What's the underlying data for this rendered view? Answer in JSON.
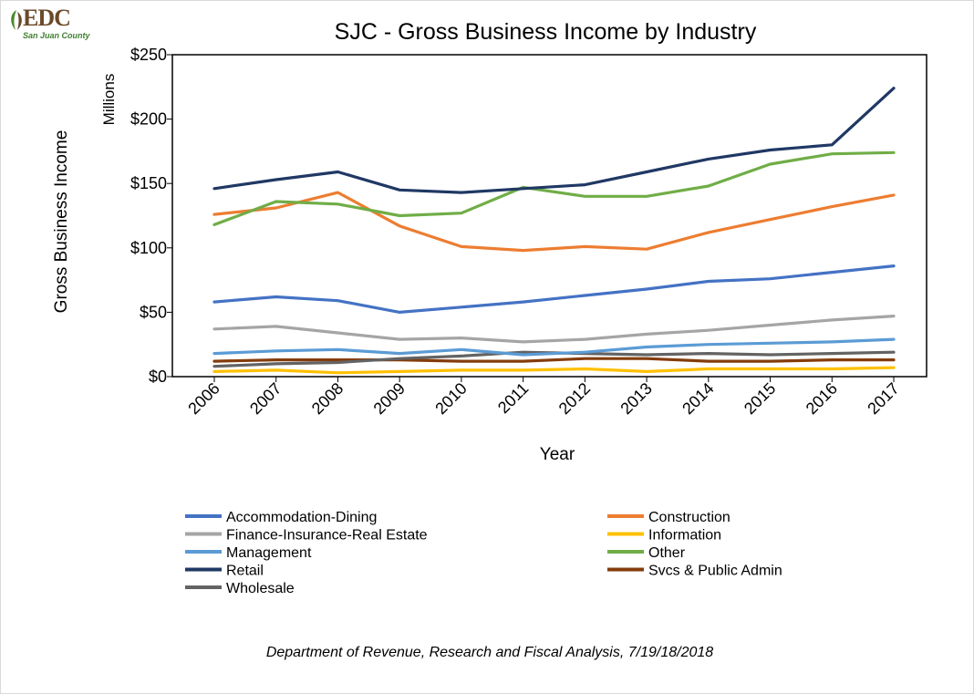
{
  "logo": {
    "name": "EDC",
    "subtitle": "San Juan County"
  },
  "source_note": "Department of Revenue, Research and Fiscal Analysis, 7/19/18/2018",
  "chart_data": {
    "type": "line",
    "title": "SJC - Gross Business Income by Industry",
    "xlabel": "Year",
    "ylabel": "Gross Business Income",
    "yunit_label": "Millions",
    "ylim": [
      0,
      250
    ],
    "yticks": [
      0,
      50,
      100,
      150,
      200,
      250
    ],
    "ytick_labels": [
      "$0",
      "$50",
      "$100",
      "$150",
      "$200",
      "$250"
    ],
    "grid": false,
    "legend_position": "bottom",
    "x": [
      "2006",
      "2007",
      "2008",
      "2009",
      "2010",
      "2011",
      "2012",
      "2013",
      "2014",
      "2015",
      "2016",
      "2017"
    ],
    "series": [
      {
        "name": "Accommodation-Dining",
        "color": "#4472c4",
        "values": [
          58,
          62,
          59,
          50,
          54,
          58,
          63,
          68,
          74,
          76,
          81,
          86
        ]
      },
      {
        "name": "Construction",
        "color": "#ed7d31",
        "values": [
          126,
          131,
          143,
          117,
          101,
          98,
          101,
          99,
          112,
          122,
          132,
          141
        ]
      },
      {
        "name": "Finance-Insurance-Real Estate",
        "color": "#a5a5a5",
        "values": [
          37,
          39,
          34,
          29,
          30,
          27,
          29,
          33,
          36,
          40,
          44,
          47
        ]
      },
      {
        "name": "Information",
        "color": "#ffc000",
        "values": [
          4,
          5,
          3,
          4,
          5,
          5,
          6,
          4,
          6,
          6,
          6,
          7
        ]
      },
      {
        "name": "Management",
        "color": "#5b9bd5",
        "values": [
          18,
          20,
          21,
          18,
          21,
          17,
          19,
          23,
          25,
          26,
          27,
          29
        ]
      },
      {
        "name": "Other",
        "color": "#70ad47",
        "values": [
          118,
          136,
          134,
          125,
          127,
          147,
          140,
          140,
          148,
          165,
          173,
          174
        ]
      },
      {
        "name": "Retail",
        "color": "#203864",
        "values": [
          146,
          153,
          159,
          145,
          143,
          146,
          149,
          159,
          169,
          176,
          180,
          224
        ]
      },
      {
        "name": "Svcs & Public Admin",
        "color": "#843c0c",
        "values": [
          12,
          13,
          13,
          13,
          12,
          12,
          14,
          14,
          12,
          12,
          13,
          13
        ]
      },
      {
        "name": "Wholesale",
        "color": "#636363",
        "values": [
          8,
          10,
          11,
          14,
          16,
          19,
          18,
          17,
          18,
          17,
          18,
          19
        ]
      }
    ]
  }
}
